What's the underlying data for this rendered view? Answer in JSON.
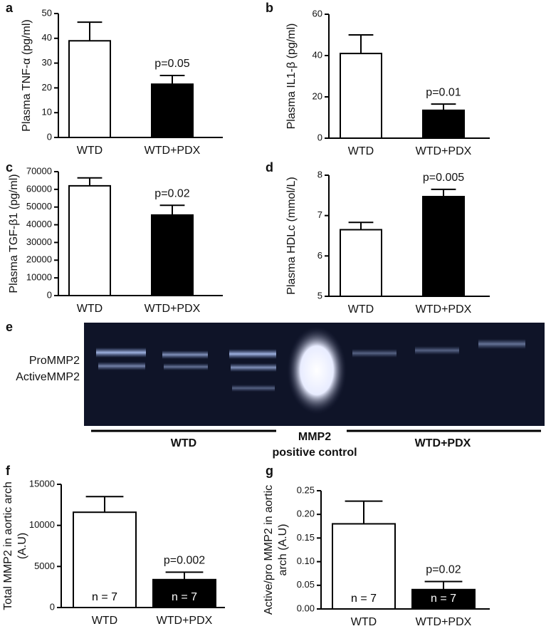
{
  "chart_data": [
    {
      "type": "bar",
      "panel": "a",
      "ylabel": "Plasma TNF-α (pg/ml)",
      "categories": [
        "WTD",
        "WTD+PDX"
      ],
      "values": [
        39,
        21.5
      ],
      "errors": [
        7.5,
        3.5
      ],
      "colors": [
        "#ffffff",
        "#000000"
      ],
      "ylim": [
        0,
        50
      ],
      "yticks": [
        0,
        10,
        20,
        30,
        40,
        50
      ],
      "annotation": "p=0.05"
    },
    {
      "type": "bar",
      "panel": "b",
      "ylabel": "Plasma IL1-β (pg/ml)",
      "categories": [
        "WTD",
        "WTD+PDX"
      ],
      "values": [
        41,
        13.5
      ],
      "errors": [
        9,
        3
      ],
      "colors": [
        "#ffffff",
        "#000000"
      ],
      "ylim": [
        0,
        60
      ],
      "yticks": [
        0,
        20,
        40,
        60
      ],
      "annotation": "p=0.01"
    },
    {
      "type": "bar",
      "panel": "c",
      "ylabel": "Plasma TGF-β1 (pg/ml)",
      "categories": [
        "WTD",
        "WTD+PDX"
      ],
      "values": [
        62000,
        45500
      ],
      "errors": [
        4500,
        5500
      ],
      "colors": [
        "#ffffff",
        "#000000"
      ],
      "ylim": [
        0,
        70000
      ],
      "yticks": [
        0,
        10000,
        20000,
        30000,
        40000,
        50000,
        60000,
        70000
      ],
      "annotation": "p=0.02"
    },
    {
      "type": "bar",
      "panel": "d",
      "ylabel": "Plasma HDLc (mmol/L)",
      "categories": [
        "WTD",
        "WTD+PDX"
      ],
      "values": [
        6.65,
        7.47
      ],
      "errors": [
        0.18,
        0.18
      ],
      "colors": [
        "#ffffff",
        "#000000"
      ],
      "ylim": [
        5,
        8
      ],
      "yticks": [
        5,
        6,
        7,
        8
      ],
      "annotation": "p=0.005"
    },
    {
      "type": "bar",
      "panel": "f",
      "ylabel": [
        "Total MMP2 in aortic arch",
        "(A.U)"
      ],
      "categories": [
        "WTD",
        "WTD+PDX"
      ],
      "values": [
        11600,
        3400
      ],
      "errors": [
        1900,
        900
      ],
      "colors": [
        "#ffffff",
        "#000000"
      ],
      "ylim": [
        0,
        15000
      ],
      "yticks": [
        0,
        5000,
        10000,
        15000
      ],
      "annotation": "p=0.002",
      "n_labels": [
        "n = 7",
        "n = 7"
      ]
    },
    {
      "type": "bar",
      "panel": "g",
      "ylabel": [
        "Active/pro MMP2 in aortic",
        "arch (A.U)"
      ],
      "categories": [
        "WTD",
        "WTD+PDX"
      ],
      "values": [
        0.18,
        0.041
      ],
      "errors": [
        0.048,
        0.017
      ],
      "colors": [
        "#ffffff",
        "#000000"
      ],
      "ylim": [
        0,
        0.25
      ],
      "yticks": [
        {
          "value": 0,
          "label": "0.00"
        },
        {
          "value": 0.05,
          "label": "0.05"
        },
        {
          "value": 0.1,
          "label": "0.10"
        },
        {
          "value": 0.15,
          "label": "0.15"
        },
        {
          "value": 0.2,
          "label": "0.20"
        },
        {
          "value": 0.25,
          "label": "0.25"
        }
      ],
      "annotation": "p=0.02",
      "n_labels": [
        "n = 7",
        "n = 7"
      ]
    }
  ],
  "gel": {
    "panel": "e",
    "band_labels": [
      "ProMMP2",
      "ActiveMMP2"
    ],
    "group_labels": [
      "WTD",
      "MMP2",
      "positive control",
      "WTD+PDX"
    ]
  }
}
